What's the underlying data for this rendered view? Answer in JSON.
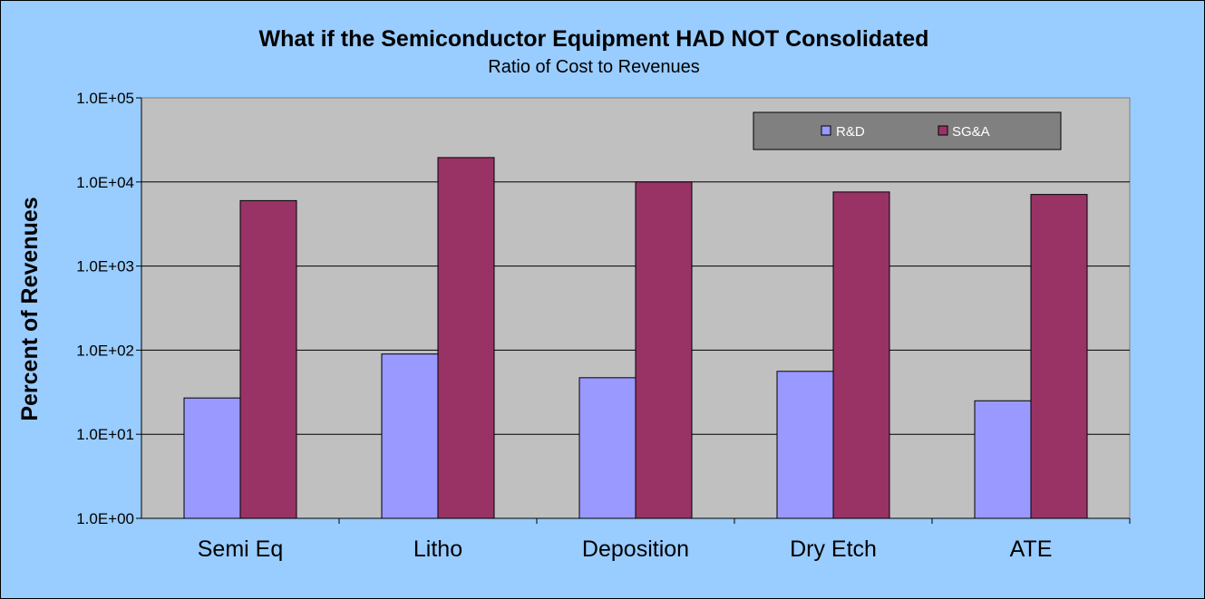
{
  "chart_data": {
    "type": "bar",
    "title": "What if the Semiconductor Equipment HAD NOT Consolidated",
    "subtitle": "Ratio of Cost to Revenues",
    "ylabel": "Percent of Revenues",
    "xlabel": "",
    "yscale": "log",
    "ylim": [
      1,
      100000
    ],
    "yticks": [
      1,
      10,
      100,
      1000,
      10000,
      100000
    ],
    "ytick_labels": [
      "1.0E+00",
      "1.0E+01",
      "1.0E+02",
      "1.0E+03",
      "1.0E+04",
      "1.0E+05"
    ],
    "categories": [
      "Semi Eq",
      "Litho",
      "Deposition",
      "Dry Etch",
      "ATE"
    ],
    "series": [
      {
        "name": "R&D",
        "color": "#9999ff",
        "values": [
          27,
          90,
          47,
          56,
          25
        ]
      },
      {
        "name": "SG&A",
        "color": "#993366",
        "values": [
          6000,
          19500,
          10000,
          7600,
          7100
        ]
      }
    ],
    "grid": true,
    "legend_position": "top-right",
    "plot_background": "#c0c0c0",
    "legend_background": "#808080"
  }
}
